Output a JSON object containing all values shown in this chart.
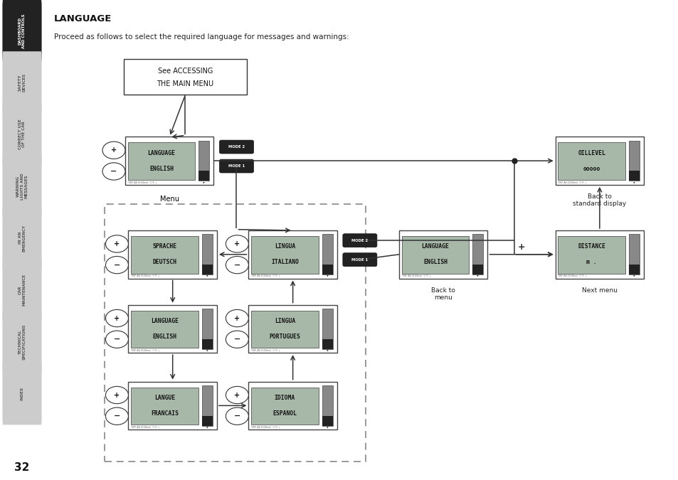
{
  "title": "LANGUAGE",
  "subtitle": "Proceed as follows to select the required language for messages and warnings:",
  "page_number": "32",
  "sidebar_sections": [
    {
      "label": "DASHBOARD\nAND CONTROLS",
      "active": true
    },
    {
      "label": "SAFETY\nDEVICES",
      "active": false
    },
    {
      "label": "CORRECT USE\nOF THE CAR",
      "active": false
    },
    {
      "label": "WARNING\nLIGHTS AND\nMESSAGES",
      "active": false
    },
    {
      "label": "IN AN\nEMERGENCY",
      "active": false
    },
    {
      "label": "CAR\nMAINTENANCE",
      "active": false
    },
    {
      "label": "TECHNICAL\nSPECIFICATIONS",
      "active": false
    },
    {
      "label": "INDEX",
      "active": false
    }
  ],
  "bg_color": "#ffffff",
  "sidebar_active_color": "#222222",
  "sidebar_inactive_color": "#cccccc",
  "sidebar_text_active": "#ffffff",
  "sidebar_text_inactive": "#555555",
  "arrow_color": "#333333",
  "display_outer": "#c0c0c0",
  "display_screen": "#9aaa9a",
  "display_border": "#555555",
  "mode_btn_color": "#222222",
  "mode_btn_text": "#ffffff"
}
